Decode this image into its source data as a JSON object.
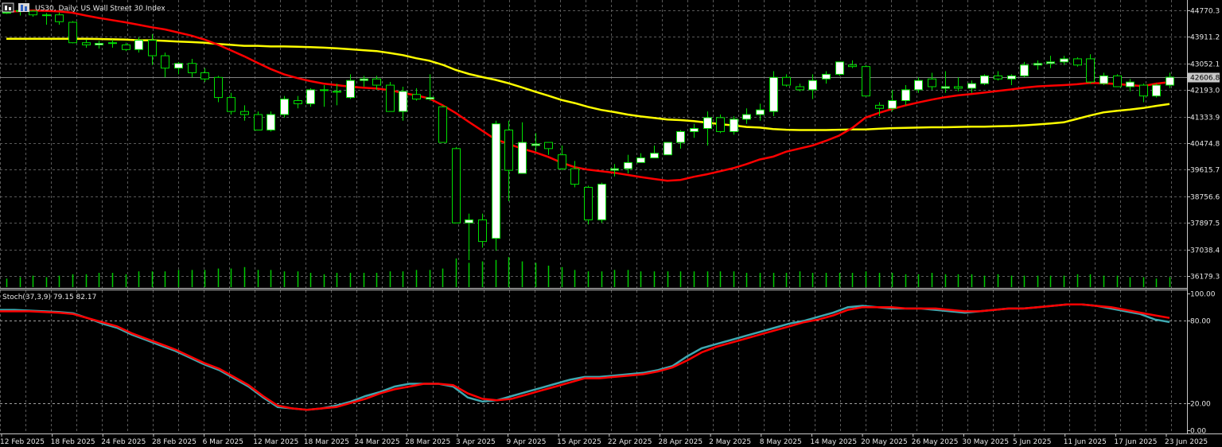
{
  "header": {
    "title": "US30, Daily:  US Wall Street 30 Index",
    "icon": "chart-bars-icon"
  },
  "price_axis": {
    "labels": [
      "44770.3",
      "43911.2",
      "43052.1",
      "42193.0",
      "41333.9",
      "40474.8",
      "39615.7",
      "38756.6",
      "37897.5",
      "37038.4",
      "36179.3"
    ],
    "current_price": "42606.8"
  },
  "stoch": {
    "label": "Stoch(37,3,9) 79.15 82.17",
    "axis_labels": [
      "100.00",
      "80.00",
      "20.00",
      "0.00"
    ],
    "main_last": 79.15,
    "signal_last": 82.17
  },
  "time_axis": {
    "labels": [
      "12 Feb 2025",
      "18 Feb 2025",
      "24 Feb 2025",
      "28 Feb 2025",
      "6 Mar 2025",
      "12 Mar 2025",
      "18 Mar 2025",
      "24 Mar 2025",
      "28 Mar 2025",
      "3 Apr 2025",
      "9 Apr 2025",
      "15 Apr 2025",
      "22 Apr 2025",
      "28 Apr 2025",
      "2 May 2025",
      "8 May 2025",
      "14 May 2025",
      "20 May 2025",
      "26 May 2025",
      "30 May 2025",
      "5 Jun 2025",
      "11 Jun 2025",
      "17 Jun 2025",
      "23 Jun 2025"
    ]
  },
  "colors": {
    "background": "#000000",
    "bull_candle": "#ffffff",
    "bear_candle": "#000000",
    "wick": "#00e000",
    "ma_fast": "#ff0000",
    "ma_slow": "#ffff00",
    "stoch_main": "#3fa8b0",
    "stoch_signal": "#ff0000",
    "volume": "#00c800",
    "grid": "#5a5a5a"
  },
  "chart_data": {
    "type": "candlestick",
    "ylim": [
      35800,
      45100
    ],
    "candles": [
      [
        44700,
        44800,
        44650,
        44700
      ],
      [
        44760,
        44820,
        44600,
        44740
      ],
      [
        44740,
        44780,
        44560,
        44620
      ],
      [
        44600,
        44680,
        44300,
        44620
      ],
      [
        44620,
        44700,
        44300,
        44400
      ],
      [
        44380,
        44420,
        43700,
        43720
      ],
      [
        43720,
        43820,
        43560,
        43650
      ],
      [
        43650,
        43780,
        43530,
        43700
      ],
      [
        43700,
        43820,
        43560,
        43720
      ],
      [
        43650,
        43720,
        43450,
        43500
      ],
      [
        43500,
        43900,
        43400,
        43800
      ],
      [
        43800,
        44000,
        43000,
        43300
      ],
      [
        43300,
        43400,
        42600,
        42900
      ],
      [
        42900,
        43100,
        42700,
        43050
      ],
      [
        43050,
        43200,
        42600,
        42750
      ],
      [
        42750,
        42900,
        42450,
        42550
      ],
      [
        42600,
        42650,
        41800,
        41950
      ],
      [
        41950,
        42100,
        41400,
        41500
      ],
      [
        41500,
        41700,
        41200,
        41400
      ],
      [
        41400,
        41500,
        40900,
        40900
      ],
      [
        40900,
        41500,
        40850,
        41400
      ],
      [
        41400,
        42000,
        41300,
        41900
      ],
      [
        41850,
        42000,
        41600,
        41750
      ],
      [
        41750,
        42250,
        41650,
        42200
      ],
      [
        42200,
        42350,
        41650,
        42200
      ],
      [
        42150,
        42400,
        41700,
        42150
      ],
      [
        41950,
        42700,
        41900,
        42500
      ],
      [
        42500,
        42650,
        42300,
        42550
      ],
      [
        42550,
        42650,
        42200,
        42350
      ],
      [
        42350,
        42450,
        41500,
        41500
      ],
      [
        41500,
        42300,
        41200,
        42150
      ],
      [
        42050,
        42250,
        41850,
        41900
      ],
      [
        41900,
        42700,
        41850,
        41950
      ],
      [
        41650,
        41700,
        40500,
        40500
      ],
      [
        40300,
        40350,
        37900,
        37900
      ],
      [
        37900,
        38200,
        36700,
        38000
      ],
      [
        38000,
        38200,
        37100,
        37300
      ],
      [
        37400,
        41200,
        37000,
        41100
      ],
      [
        40900,
        41200,
        38600,
        39600
      ],
      [
        39500,
        41150,
        39500,
        40500
      ],
      [
        40400,
        40800,
        40200,
        40450
      ],
      [
        40500,
        40500,
        40100,
        40300
      ],
      [
        40100,
        40400,
        39600,
        39650
      ],
      [
        39650,
        39900,
        39050,
        39150
      ],
      [
        39050,
        39100,
        37850,
        38000
      ],
      [
        38000,
        39200,
        37900,
        39150
      ],
      [
        39600,
        39800,
        39400,
        39650
      ],
      [
        39650,
        40100,
        39500,
        39850
      ],
      [
        39850,
        40150,
        39850,
        40000
      ],
      [
        40000,
        40400,
        40050,
        40150
      ],
      [
        40100,
        40500,
        40100,
        40500
      ],
      [
        40500,
        40900,
        40300,
        40850
      ],
      [
        40850,
        41100,
        40650,
        40950
      ],
      [
        40950,
        41500,
        40400,
        41300
      ],
      [
        41300,
        41400,
        40800,
        40850
      ],
      [
        40850,
        41350,
        40750,
        41250
      ],
      [
        41250,
        41600,
        41100,
        41400
      ],
      [
        41400,
        41750,
        41200,
        41550
      ],
      [
        41500,
        42800,
        41350,
        42600
      ],
      [
        42600,
        42700,
        42300,
        42350
      ],
      [
        42300,
        42400,
        42150,
        42200
      ],
      [
        42200,
        42700,
        41900,
        42500
      ],
      [
        42550,
        42800,
        42400,
        42700
      ],
      [
        42700,
        43100,
        42650,
        43100
      ],
      [
        43000,
        43150,
        42900,
        42950
      ],
      [
        42950,
        43000,
        42050,
        42000
      ],
      [
        41700,
        41800,
        41350,
        41600
      ],
      [
        41600,
        42200,
        41500,
        41850
      ],
      [
        41850,
        42350,
        41700,
        42200
      ],
      [
        42200,
        42600,
        42100,
        42500
      ],
      [
        42550,
        42750,
        42200,
        42300
      ],
      [
        42250,
        42800,
        42100,
        42300
      ],
      [
        42300,
        42600,
        42150,
        42250
      ],
      [
        42250,
        42500,
        42100,
        42400
      ],
      [
        42400,
        42700,
        42350,
        42650
      ],
      [
        42650,
        42800,
        42500,
        42550
      ],
      [
        42550,
        42700,
        42350,
        42650
      ],
      [
        42650,
        43100,
        42600,
        43000
      ],
      [
        43000,
        43150,
        42850,
        43050
      ],
      [
        43050,
        43300,
        42900,
        43100
      ],
      [
        43100,
        43300,
        43000,
        43200
      ],
      [
        43200,
        43250,
        42950,
        43000
      ],
      [
        43200,
        43350,
        42400,
        42450
      ],
      [
        42400,
        42750,
        42350,
        42650
      ],
      [
        42650,
        42700,
        42300,
        42300
      ],
      [
        42300,
        42550,
        42150,
        42450
      ],
      [
        42350,
        42400,
        41800,
        42000
      ],
      [
        42000,
        42400,
        41950,
        42350
      ],
      [
        42350,
        42750,
        42250,
        42607
      ]
    ],
    "ma_fast": [
      44720,
      44740,
      44760,
      44750,
      44730,
      44690,
      44600,
      44520,
      44450,
      44380,
      44300,
      44220,
      44150,
      44050,
      43950,
      43820,
      43660,
      43470,
      43280,
      43070,
      42870,
      42700,
      42580,
      42480,
      42400,
      42350,
      42300,
      42270,
      42240,
      42190,
      42100,
      42020,
      41920,
      41700,
      41450,
      41160,
      40880,
      40600,
      40450,
      40300,
      40180,
      40030,
      39850,
      39700,
      39620,
      39570,
      39520,
      39450,
      39380,
      39320,
      39260,
      39290,
      39390,
      39470,
      39570,
      39670,
      39800,
      39950,
      40040,
      40200,
      40300,
      40400,
      40550,
      40720,
      40970,
      41300,
      41450,
      41580,
      41690,
      41790,
      41880,
      41960,
      42020,
      42060,
      42110,
      42160,
      42210,
      42270,
      42310,
      42330,
      42350,
      42380,
      42420,
      42410,
      42390,
      42350,
      42320,
      42400,
      42450
    ],
    "ma_slow": [
      43850,
      43850,
      43850,
      43850,
      43850,
      43850,
      43850,
      43840,
      43830,
      43820,
      43800,
      43800,
      43780,
      43760,
      43740,
      43720,
      43680,
      43650,
      43620,
      43620,
      43600,
      43600,
      43590,
      43580,
      43560,
      43540,
      43510,
      43480,
      43450,
      43390,
      43320,
      43220,
      43140,
      43010,
      42840,
      42710,
      42610,
      42520,
      42410,
      42280,
      42140,
      42010,
      41870,
      41770,
      41650,
      41550,
      41480,
      41400,
      41340,
      41290,
      41240,
      41220,
      41190,
      41140,
      41090,
      41050,
      41000,
      40980,
      40930,
      40910,
      40900,
      40900,
      40900,
      40910,
      40920,
      40920,
      40940,
      40960,
      40970,
      40980,
      40990,
      40990,
      41000,
      41010,
      41010,
      41020,
      41030,
      41050,
      41080,
      41110,
      41150,
      41260,
      41370,
      41470,
      41520,
      41560,
      41610,
      41680,
      41740
    ],
    "volumes": [
      0.3,
      0.35,
      0.4,
      0.35,
      0.4,
      0.45,
      0.45,
      0.5,
      0.5,
      0.45,
      0.55,
      0.55,
      0.55,
      0.6,
      0.6,
      0.6,
      0.65,
      0.65,
      0.7,
      0.6,
      0.6,
      0.55,
      0.55,
      0.5,
      0.45,
      0.5,
      0.5,
      0.5,
      0.5,
      0.55,
      0.55,
      0.6,
      0.6,
      0.65,
      1.0,
      0.85,
      0.9,
      0.95,
      1.05,
      0.9,
      0.85,
      0.75,
      0.7,
      0.6,
      0.55,
      0.55,
      0.6,
      0.6,
      0.55,
      0.55,
      0.55,
      0.55,
      0.55,
      0.55,
      0.55,
      0.55,
      0.5,
      0.5,
      0.5,
      0.5,
      0.55,
      0.5,
      0.5,
      0.5,
      0.5,
      0.55,
      0.5,
      0.5,
      0.45,
      0.45,
      0.5,
      0.45,
      0.45,
      0.45,
      0.4,
      0.45,
      0.4,
      0.4,
      0.4,
      0.4,
      0.4,
      0.45,
      0.45,
      0.4,
      0.4,
      0.35,
      0.35,
      0.3,
      0.35
    ],
    "stoch_main": [
      88,
      88,
      87.5,
      87,
      86.5,
      85.5,
      82,
      78,
      75,
      70,
      66,
      62,
      58,
      53,
      48,
      44,
      38,
      32,
      24,
      17,
      16,
      15,
      16,
      18,
      21,
      25,
      28,
      32,
      34,
      34,
      34,
      32,
      24,
      21,
      22,
      25,
      28,
      31,
      34,
      37,
      39,
      39,
      40,
      41,
      42,
      44,
      47,
      54,
      60,
      63,
      66,
      69,
      72,
      75,
      78,
      80,
      83,
      86,
      90,
      91,
      90,
      89,
      89,
      89,
      88,
      87,
      86,
      87,
      88,
      89,
      89,
      90,
      91,
      92,
      92,
      91,
      89,
      87,
      85,
      81,
      79.15
    ],
    "stoch_signal": [
      87,
      87,
      87,
      86.5,
      86,
      85,
      82,
      79,
      76,
      71,
      67,
      63,
      59,
      54,
      49,
      45,
      39,
      33,
      25,
      18,
      16,
      15,
      16,
      17,
      20,
      23,
      27,
      30,
      32,
      34,
      34,
      33,
      27,
      23,
      22,
      23,
      26,
      29,
      32,
      35,
      38,
      38,
      39,
      40,
      41,
      43,
      46,
      51,
      57,
      61,
      64,
      67,
      70,
      73,
      76,
      79,
      81,
      84,
      88,
      90,
      90,
      90,
      89,
      89,
      89,
      88,
      87,
      87,
      88,
      89,
      89,
      90,
      91,
      92,
      92,
      91,
      90,
      88,
      86,
      84,
      82.17
    ]
  }
}
